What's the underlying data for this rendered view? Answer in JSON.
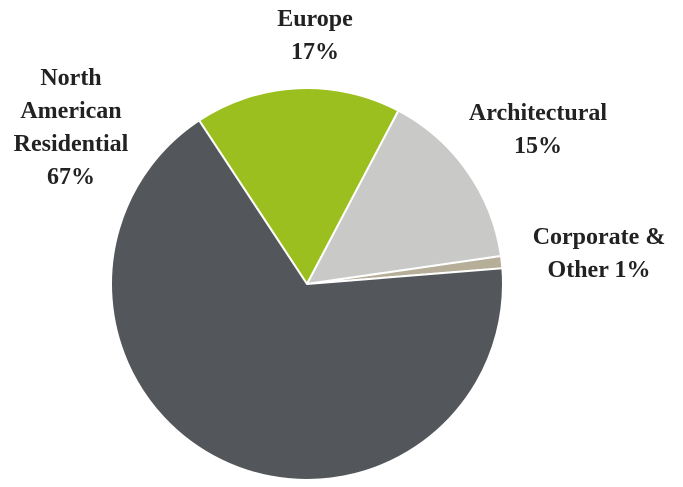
{
  "chart_data": {
    "type": "pie",
    "categories": [
      "Europe",
      "Architectural",
      "Corporate & Other",
      "North American Residential"
    ],
    "values": [
      17,
      15,
      1,
      67
    ],
    "value_labels": [
      "17%",
      "15%",
      "1%",
      "67%"
    ],
    "colors": [
      "#9bbf1e",
      "#c9c9c7",
      "#b6ae98",
      "#53565a"
    ]
  }
}
